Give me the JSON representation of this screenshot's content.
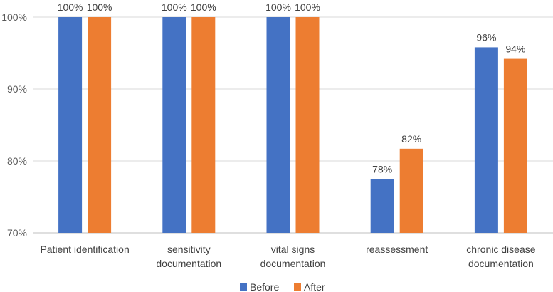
{
  "chart_data": {
    "type": "bar",
    "categories": [
      [
        "Patient identification"
      ],
      [
        "sensitivity",
        "documentation"
      ],
      [
        "vital signs",
        "documentation"
      ],
      [
        "reassessment"
      ],
      [
        "chronic disease",
        "documentation"
      ]
    ],
    "series": [
      {
        "name": "Before",
        "color": "#4472C4",
        "values": [
          100,
          100,
          100,
          77.5,
          95.8
        ],
        "labels": [
          "100%",
          "100%",
          "100%",
          "78%",
          "96%"
        ]
      },
      {
        "name": "After",
        "color": "#ED7D31",
        "values": [
          100,
          100,
          100,
          81.7,
          94.2
        ],
        "labels": [
          "100%",
          "100%",
          "100%",
          "82%",
          "94%"
        ]
      }
    ],
    "ylim": [
      70,
      100
    ],
    "yticks": [
      70,
      80,
      90,
      100
    ],
    "ytick_labels": [
      "70%",
      "80%",
      "90%",
      "100%"
    ],
    "grid": true,
    "legend": "bottom"
  }
}
